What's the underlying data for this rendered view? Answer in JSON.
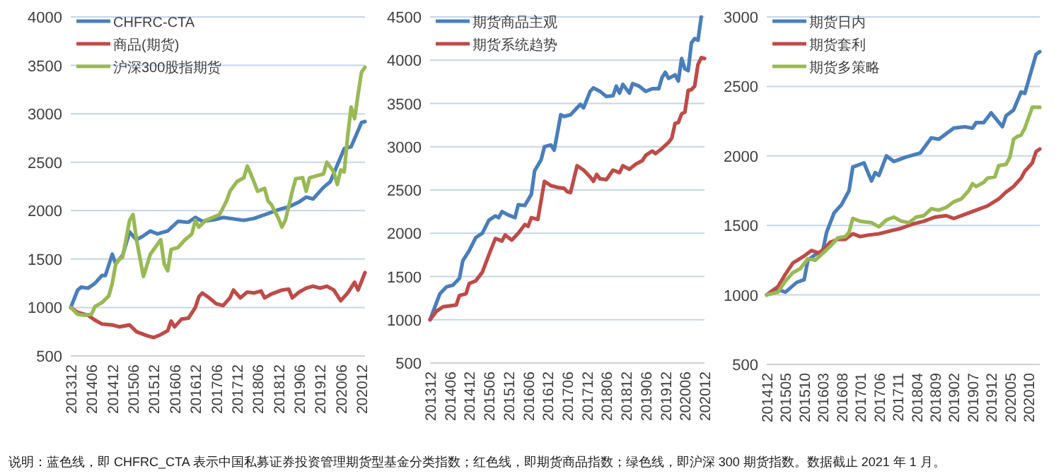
{
  "chart_data": [
    {
      "type": "line",
      "grid": "y",
      "legend": "top left",
      "xlim": [
        "2013-12",
        "2021-01"
      ],
      "ylim": [
        500,
        4000
      ],
      "yticks": [
        500,
        1000,
        1500,
        2000,
        2500,
        3000,
        3500,
        4000
      ],
      "xticks": [
        {
          "value": "2013-12",
          "label": "201312"
        },
        {
          "value": "2014-06",
          "label": "201406"
        },
        {
          "value": "2014-12",
          "label": "201412"
        },
        {
          "value": "2015-06",
          "label": "201506"
        },
        {
          "value": "2015-12",
          "label": "201512"
        },
        {
          "value": "2016-06",
          "label": "201606"
        },
        {
          "value": "2016-12",
          "label": "201612"
        },
        {
          "value": "2017-06",
          "label": "201706"
        },
        {
          "value": "2017-12",
          "label": "201712"
        },
        {
          "value": "2018-06",
          "label": "201806"
        },
        {
          "value": "2018-12",
          "label": "201812"
        },
        {
          "value": "2019-06",
          "label": "201906"
        },
        {
          "value": "2019-12",
          "label": "201912"
        },
        {
          "value": "2020-06",
          "label": "202006"
        },
        {
          "value": "2020-12",
          "label": "202012"
        }
      ],
      "series": [
        {
          "name": "CHFRC-CTA",
          "color": "#4a7ebb",
          "x": [
            "2013-12",
            "2014-02",
            "2014-03",
            "2014-05",
            "2014-07",
            "2014-09",
            "2014-10",
            "2014-12",
            "2015-01",
            "2015-03",
            "2015-05",
            "2015-07",
            "2015-09",
            "2015-11",
            "2016-01",
            "2016-04",
            "2016-07",
            "2016-10",
            "2016-12",
            "2017-02",
            "2017-06",
            "2017-08",
            "2017-10",
            "2018-02",
            "2018-05",
            "2018-09",
            "2018-12",
            "2019-03",
            "2019-06",
            "2019-08",
            "2019-10",
            "2020-01",
            "2020-03",
            "2020-05",
            "2020-07",
            "2020-09",
            "2020-12",
            "2021-01"
          ],
          "values": [
            1000,
            1180,
            1210,
            1200,
            1250,
            1330,
            1330,
            1550,
            1450,
            1540,
            1780,
            1700,
            1740,
            1790,
            1760,
            1790,
            1890,
            1880,
            1930,
            1890,
            1910,
            1930,
            1920,
            1900,
            1920,
            1970,
            2010,
            2040,
            2090,
            2140,
            2120,
            2240,
            2300,
            2470,
            2640,
            2660,
            2910,
            2920
          ]
        },
        {
          "name": "商品(期货)",
          "color": "#be4b48",
          "x": [
            "2013-12",
            "2014-02",
            "2014-05",
            "2014-07",
            "2014-09",
            "2014-12",
            "2015-02",
            "2015-05",
            "2015-07",
            "2015-10",
            "2015-12",
            "2016-02",
            "2016-04",
            "2016-05",
            "2016-06",
            "2016-08",
            "2016-10",
            "2016-12",
            "2017-01",
            "2017-02",
            "2017-04",
            "2017-06",
            "2017-08",
            "2017-10",
            "2017-11",
            "2018-01",
            "2018-03",
            "2018-05",
            "2018-07",
            "2018-08",
            "2018-10",
            "2019-01",
            "2019-03",
            "2019-04",
            "2019-06",
            "2019-08",
            "2019-10",
            "2019-12",
            "2020-02",
            "2020-04",
            "2020-06",
            "2020-08",
            "2020-10",
            "2020-11",
            "2021-01"
          ],
          "values": [
            1000,
            950,
            920,
            870,
            830,
            820,
            800,
            820,
            750,
            710,
            690,
            720,
            760,
            860,
            800,
            880,
            890,
            1000,
            1110,
            1150,
            1100,
            1040,
            1020,
            1100,
            1180,
            1100,
            1160,
            1150,
            1170,
            1100,
            1140,
            1180,
            1190,
            1100,
            1160,
            1200,
            1220,
            1200,
            1220,
            1180,
            1070,
            1150,
            1260,
            1180,
            1360
          ]
        },
        {
          "name": "沪深300股指期货",
          "color": "#98b954",
          "x": [
            "2013-12",
            "2014-02",
            "2014-04",
            "2014-06",
            "2014-07",
            "2014-09",
            "2014-11",
            "2014-12",
            "2015-01",
            "2015-02",
            "2015-03",
            "2015-05",
            "2015-06",
            "2015-07",
            "2015-09",
            "2015-11",
            "2016-01",
            "2016-02",
            "2016-03",
            "2016-04",
            "2016-05",
            "2016-07",
            "2016-09",
            "2016-11",
            "2016-12",
            "2017-01",
            "2017-03",
            "2017-05",
            "2017-07",
            "2017-09",
            "2017-10",
            "2017-12",
            "2018-02",
            "2018-03",
            "2018-04",
            "2018-06",
            "2018-08",
            "2018-09",
            "2018-10",
            "2018-12",
            "2019-01",
            "2019-02",
            "2019-04",
            "2019-05",
            "2019-07",
            "2019-08",
            "2019-09",
            "2019-11",
            "2020-01",
            "2020-02",
            "2020-04",
            "2020-05",
            "2020-06",
            "2020-07",
            "2020-08",
            "2020-09",
            "2020-10",
            "2020-11",
            "2020-12",
            "2021-01"
          ],
          "values": [
            1000,
            930,
            920,
            930,
            1010,
            1050,
            1120,
            1250,
            1450,
            1500,
            1520,
            1900,
            1960,
            1700,
            1320,
            1550,
            1650,
            1700,
            1450,
            1380,
            1600,
            1620,
            1700,
            1760,
            1900,
            1830,
            1900,
            1930,
            1960,
            2100,
            2200,
            2300,
            2340,
            2460,
            2380,
            2200,
            2230,
            2100,
            2060,
            1920,
            1830,
            1900,
            2200,
            2330,
            2340,
            2200,
            2340,
            2360,
            2380,
            2500,
            2400,
            2270,
            2420,
            2400,
            2770,
            3070,
            2950,
            3200,
            3430,
            3480
          ]
        }
      ],
      "annotations": [
        "说明：蓝色线，即 CHFRC_CTA 表示中国私募证券投资管理期货型基金分类指数；红色线，即期货商品指数；绿色线，即沪深 300 期货指数。数据截止 2021 年 1 月。"
      ]
    },
    {
      "type": "line",
      "grid": "y",
      "legend": "top left",
      "xlim": [
        "2013-12",
        "2020-12"
      ],
      "ylim": [
        500,
        4500
      ],
      "yticks": [
        500,
        1000,
        1500,
        2000,
        2500,
        3000,
        3500,
        4000,
        4500
      ],
      "xticks": [
        {
          "value": "2013-12",
          "label": "201312"
        },
        {
          "value": "2014-06",
          "label": "201406"
        },
        {
          "value": "2014-12",
          "label": "201412"
        },
        {
          "value": "2015-06",
          "label": "201506"
        },
        {
          "value": "2015-12",
          "label": "201512"
        },
        {
          "value": "2016-06",
          "label": "201606"
        },
        {
          "value": "2016-12",
          "label": "201612"
        },
        {
          "value": "2017-06",
          "label": "201706"
        },
        {
          "value": "2017-12",
          "label": "201712"
        },
        {
          "value": "2018-06",
          "label": "201806"
        },
        {
          "value": "2018-12",
          "label": "201812"
        },
        {
          "value": "2019-06",
          "label": "201906"
        },
        {
          "value": "2019-12",
          "label": "201912"
        },
        {
          "value": "2020-06",
          "label": "202006"
        },
        {
          "value": "2020-12",
          "label": "202012"
        }
      ],
      "series": [
        {
          "name": "期货商品主观",
          "color": "#4a7ebb",
          "x": [
            "2013-12",
            "2014-01",
            "2014-03",
            "2014-05",
            "2014-07",
            "2014-09",
            "2014-10",
            "2014-12",
            "2015-02",
            "2015-04",
            "2015-06",
            "2015-08",
            "2015-09",
            "2015-10",
            "2015-12",
            "2016-02",
            "2016-03",
            "2016-05",
            "2016-07",
            "2016-08",
            "2016-10",
            "2016-11",
            "2017-01",
            "2017-02",
            "2017-04",
            "2017-05",
            "2017-07",
            "2017-09",
            "2017-10",
            "2017-11",
            "2018-01",
            "2018-02",
            "2018-04",
            "2018-06",
            "2018-08",
            "2018-09",
            "2018-10",
            "2018-11",
            "2019-01",
            "2019-02",
            "2019-04",
            "2019-06",
            "2019-08",
            "2019-10",
            "2019-11",
            "2019-12",
            "2020-01",
            "2020-03",
            "2020-04",
            "2020-05",
            "2020-06",
            "2020-07",
            "2020-08",
            "2020-09",
            "2020-10",
            "2020-11"
          ],
          "values": [
            1000,
            1100,
            1300,
            1380,
            1400,
            1480,
            1680,
            1800,
            1950,
            2000,
            2150,
            2200,
            2180,
            2250,
            2210,
            2180,
            2330,
            2320,
            2450,
            2720,
            2850,
            3000,
            3020,
            2960,
            3370,
            3350,
            3370,
            3450,
            3490,
            3450,
            3640,
            3680,
            3640,
            3580,
            3590,
            3700,
            3620,
            3720,
            3620,
            3730,
            3700,
            3640,
            3670,
            3670,
            3800,
            3860,
            3790,
            3830,
            3760,
            4020,
            3900,
            3880,
            4200,
            4250,
            4230,
            4500
          ]
        },
        {
          "name": "期货系统趋势",
          "color": "#be4b48",
          "x": [
            "2013-12",
            "2014-02",
            "2014-04",
            "2014-06",
            "2014-08",
            "2014-09",
            "2014-11",
            "2014-12",
            "2015-02",
            "2015-04",
            "2015-06",
            "2015-08",
            "2015-10",
            "2015-11",
            "2016-01",
            "2016-03",
            "2016-05",
            "2016-06",
            "2016-07",
            "2016-09",
            "2016-11",
            "2017-01",
            "2017-03",
            "2017-05",
            "2017-06",
            "2017-07",
            "2017-09",
            "2017-11",
            "2018-01",
            "2018-02",
            "2018-03",
            "2018-04",
            "2018-06",
            "2018-08",
            "2018-10",
            "2018-11",
            "2019-01",
            "2019-03",
            "2019-05",
            "2019-06",
            "2019-08",
            "2019-09",
            "2019-11",
            "2020-01",
            "2020-02",
            "2020-03",
            "2020-04",
            "2020-05",
            "2020-06",
            "2020-07",
            "2020-08",
            "2020-09",
            "2020-10",
            "2020-11",
            "2020-12"
          ],
          "values": [
            1000,
            1100,
            1150,
            1160,
            1170,
            1280,
            1300,
            1420,
            1450,
            1550,
            1750,
            1940,
            1910,
            1980,
            1920,
            2000,
            2100,
            2080,
            2180,
            2160,
            2600,
            2550,
            2530,
            2520,
            2480,
            2470,
            2780,
            2730,
            2650,
            2600,
            2680,
            2630,
            2620,
            2730,
            2700,
            2780,
            2740,
            2800,
            2840,
            2900,
            2950,
            2920,
            2980,
            3050,
            3100,
            3270,
            3280,
            3380,
            3400,
            3650,
            3660,
            3700,
            3950,
            4030,
            4020
          ]
        }
      ]
    },
    {
      "type": "line",
      "grid": "y",
      "legend": "top left",
      "xlim": [
        "2014-12",
        "2021-01"
      ],
      "ylim": [
        500,
        3000
      ],
      "yticks": [
        500,
        1000,
        1500,
        2000,
        2500,
        3000
      ],
      "xticks": [
        {
          "value": "2014-12",
          "label": "201412"
        },
        {
          "value": "2015-05",
          "label": "201505"
        },
        {
          "value": "2015-10",
          "label": "201510"
        },
        {
          "value": "2016-03",
          "label": "201603"
        },
        {
          "value": "2016-08",
          "label": "201608"
        },
        {
          "value": "2017-01",
          "label": "201701"
        },
        {
          "value": "2017-06",
          "label": "201706"
        },
        {
          "value": "2017-11",
          "label": "201711"
        },
        {
          "value": "2018-04",
          "label": "201804"
        },
        {
          "value": "2018-09",
          "label": "201809"
        },
        {
          "value": "2019-02",
          "label": "201902"
        },
        {
          "value": "2019-07",
          "label": "201907"
        },
        {
          "value": "2019-12",
          "label": "201912"
        },
        {
          "value": "2020-05",
          "label": "202005"
        },
        {
          "value": "2020-10",
          "label": "202010"
        }
      ],
      "series": [
        {
          "name": "期货日内",
          "color": "#4a7ebb",
          "x": [
            "2014-12",
            "2015-02",
            "2015-04",
            "2015-05",
            "2015-08",
            "2015-10",
            "2015-11",
            "2016-01",
            "2016-03",
            "2016-04",
            "2016-06",
            "2016-08",
            "2016-10",
            "2016-11",
            "2017-02",
            "2017-04",
            "2017-05",
            "2017-06",
            "2017-08",
            "2017-10",
            "2018-01",
            "2018-05",
            "2018-08",
            "2018-10",
            "2019-02",
            "2019-05",
            "2019-07",
            "2019-08",
            "2019-10",
            "2019-12",
            "2020-03",
            "2020-04",
            "2020-06",
            "2020-08",
            "2020-09",
            "2020-12",
            "2021-01"
          ],
          "values": [
            1000,
            1040,
            1030,
            1020,
            1090,
            1110,
            1250,
            1290,
            1320,
            1450,
            1590,
            1650,
            1750,
            1920,
            1950,
            1820,
            1880,
            1860,
            2000,
            1960,
            1990,
            2020,
            2130,
            2120,
            2200,
            2210,
            2200,
            2240,
            2240,
            2310,
            2210,
            2290,
            2330,
            2460,
            2450,
            2730,
            2750
          ]
        },
        {
          "name": "期货套利",
          "color": "#be4b48",
          "x": [
            "2014-12",
            "2015-03",
            "2015-05",
            "2015-07",
            "2015-10",
            "2015-12",
            "2016-02",
            "2016-04",
            "2016-05",
            "2016-07",
            "2016-09",
            "2016-11",
            "2017-01",
            "2017-03",
            "2017-06",
            "2017-09",
            "2017-12",
            "2018-03",
            "2018-06",
            "2018-09",
            "2018-12",
            "2019-02",
            "2019-05",
            "2019-08",
            "2019-11",
            "2020-02",
            "2020-04",
            "2020-06",
            "2020-08",
            "2020-09",
            "2020-11",
            "2020-12",
            "2021-01"
          ],
          "values": [
            1000,
            1060,
            1150,
            1230,
            1280,
            1320,
            1300,
            1350,
            1380,
            1400,
            1400,
            1440,
            1420,
            1430,
            1440,
            1460,
            1480,
            1510,
            1530,
            1560,
            1570,
            1550,
            1580,
            1610,
            1640,
            1690,
            1740,
            1780,
            1840,
            1890,
            1950,
            2030,
            2050
          ]
        },
        {
          "name": "期货多策略",
          "color": "#98b954",
          "x": [
            "2014-12",
            "2015-03",
            "2015-05",
            "2015-07",
            "2015-09",
            "2015-11",
            "2016-01",
            "2016-03",
            "2016-05",
            "2016-07",
            "2016-09",
            "2016-10",
            "2016-11",
            "2017-01",
            "2017-04",
            "2017-06",
            "2017-08",
            "2017-10",
            "2017-12",
            "2018-02",
            "2018-04",
            "2018-06",
            "2018-08",
            "2018-10",
            "2018-12",
            "2019-02",
            "2019-04",
            "2019-06",
            "2019-07",
            "2019-08",
            "2019-10",
            "2019-11",
            "2020-01",
            "2020-02",
            "2020-04",
            "2020-05",
            "2020-06",
            "2020-07",
            "2020-08",
            "2020-09",
            "2020-11",
            "2021-01"
          ],
          "values": [
            1000,
            1020,
            1100,
            1160,
            1190,
            1260,
            1250,
            1300,
            1350,
            1410,
            1420,
            1450,
            1550,
            1530,
            1520,
            1490,
            1540,
            1560,
            1530,
            1520,
            1560,
            1570,
            1620,
            1610,
            1630,
            1670,
            1690,
            1750,
            1800,
            1780,
            1810,
            1840,
            1850,
            1930,
            1940,
            1990,
            2120,
            2140,
            2150,
            2200,
            2350,
            2350
          ]
        }
      ]
    }
  ]
}
